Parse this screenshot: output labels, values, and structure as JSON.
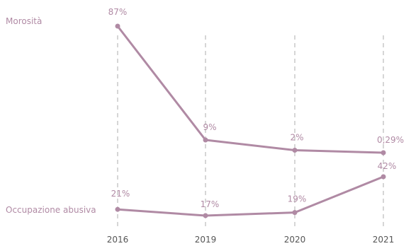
{
  "chart_data": {
    "type": "line",
    "categories": [
      "2016",
      "2019",
      "2020",
      "2021"
    ],
    "series": [
      {
        "name": "Morosità",
        "values": [
          87,
          9,
          2,
          0.29
        ],
        "labels": [
          "87%",
          "9%",
          "2%",
          "0,29%"
        ]
      },
      {
        "name": "Occupazione abusiva",
        "values": [
          21,
          17,
          19,
          42
        ],
        "labels": [
          "21%",
          "17%",
          "19%",
          "42%"
        ]
      }
    ],
    "title": "",
    "xlabel": "",
    "ylabel": "",
    "grid": false,
    "legend": "left",
    "colors": {
      "line": "#b08aa4",
      "guide": "#c9c9c9",
      "tick": "#555555"
    }
  }
}
